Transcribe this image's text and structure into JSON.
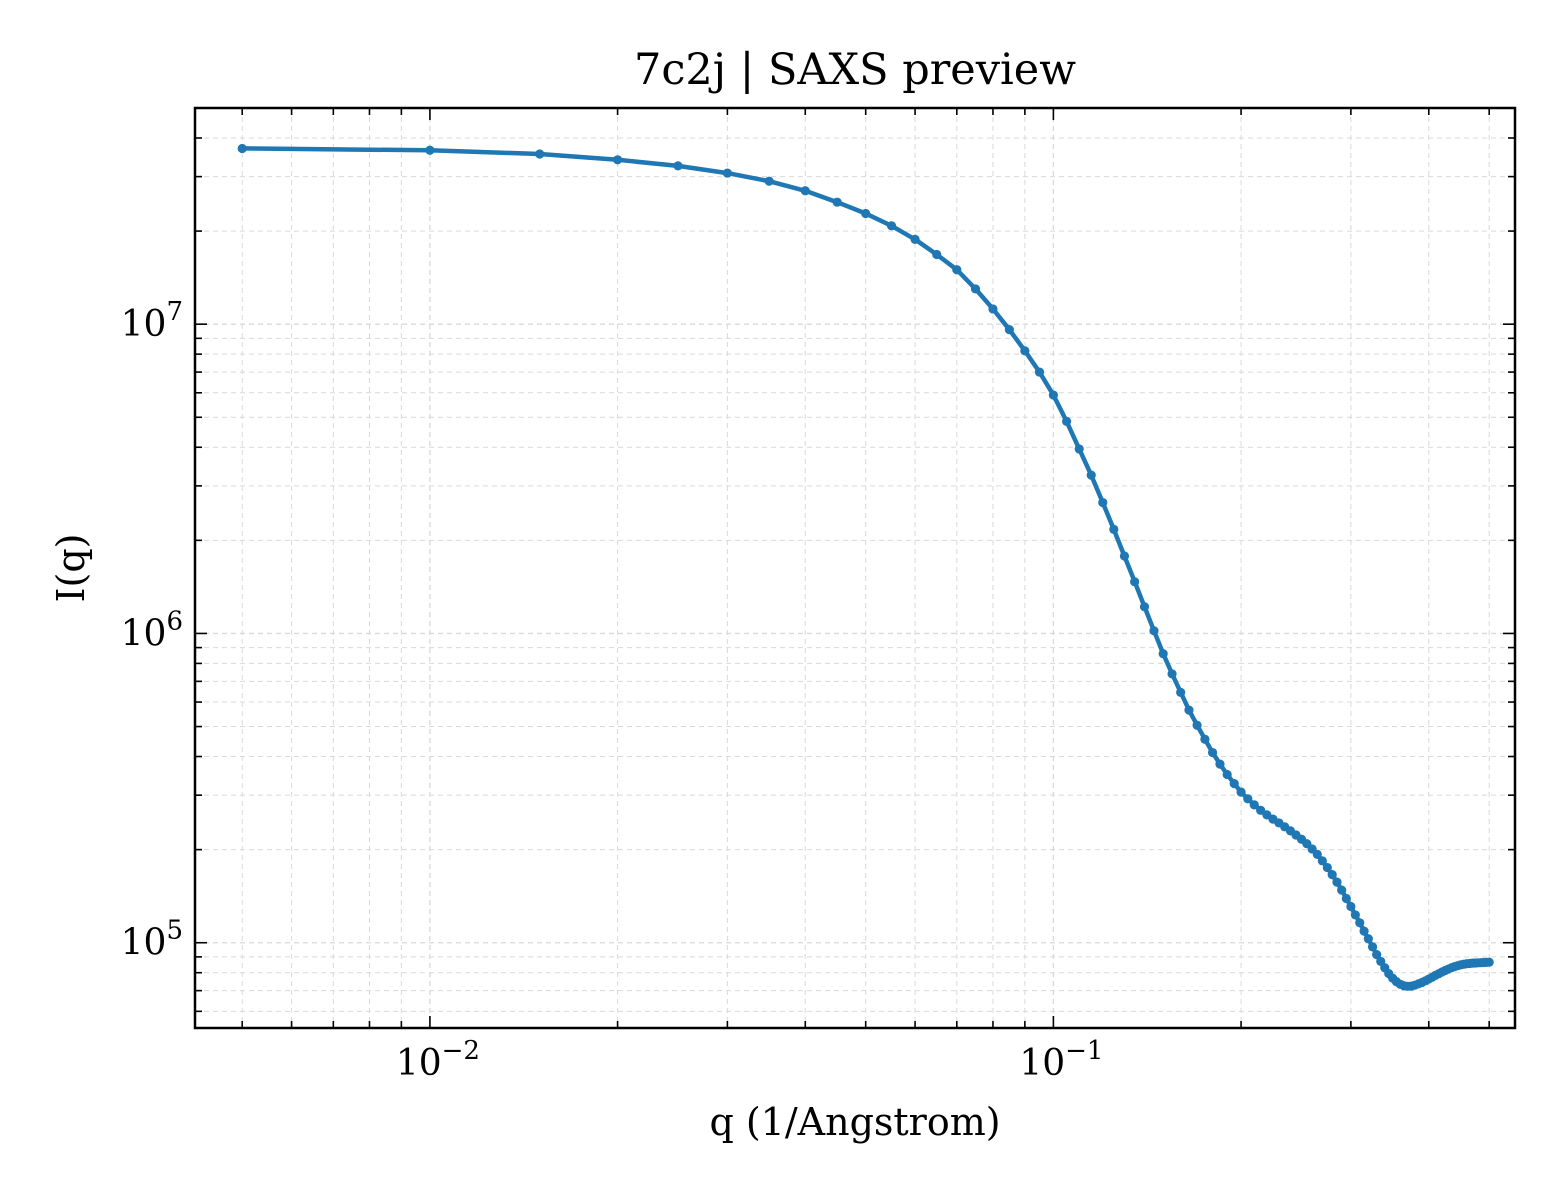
{
  "chart_data": {
    "type": "line",
    "title": "7c2j | SAXS preview",
    "xlabel": "q (1/Angstrom)",
    "ylabel": "I(q)",
    "xscale": "log",
    "yscale": "log",
    "xlim": [
      0.0042,
      0.55
    ],
    "ylim": [
      53000,
      50000000
    ],
    "grid": true,
    "legend": "none",
    "color": "#1f77b4",
    "marker": "dot",
    "xticks": [
      {
        "value": 0.01,
        "base": "10",
        "exp": "−2"
      },
      {
        "value": 0.1,
        "base": "10",
        "exp": "−1"
      }
    ],
    "yticks": [
      {
        "value": 100000,
        "base": "10",
        "exp": "5"
      },
      {
        "value": 1000000,
        "base": "10",
        "exp": "6"
      },
      {
        "value": 10000000,
        "base": "10",
        "exp": "7"
      }
    ],
    "series": [
      {
        "x": [
          0.005,
          0.01,
          0.015,
          0.02,
          0.025,
          0.03,
          0.035,
          0.04,
          0.045,
          0.05,
          0.055,
          0.06,
          0.065,
          0.07,
          0.075,
          0.08,
          0.085,
          0.09,
          0.095,
          0.1,
          0.105,
          0.11,
          0.115,
          0.12,
          0.125,
          0.13,
          0.135,
          0.14,
          0.145,
          0.15,
          0.155,
          0.16,
          0.165,
          0.17,
          0.175,
          0.18,
          0.185,
          0.19,
          0.195,
          0.2,
          0.205,
          0.21,
          0.215,
          0.22,
          0.225,
          0.23,
          0.235,
          0.24,
          0.245,
          0.25,
          0.255,
          0.26,
          0.265,
          0.27,
          0.275,
          0.28,
          0.285,
          0.29,
          0.295,
          0.3,
          0.305,
          0.31,
          0.315,
          0.32,
          0.325,
          0.33,
          0.335,
          0.34,
          0.345,
          0.35,
          0.355,
          0.36,
          0.365,
          0.37,
          0.375,
          0.38,
          0.385,
          0.39,
          0.395,
          0.4,
          0.405,
          0.41,
          0.415,
          0.42,
          0.425,
          0.43,
          0.435,
          0.44,
          0.445,
          0.45,
          0.455,
          0.46,
          0.465,
          0.47,
          0.475,
          0.48,
          0.485,
          0.49,
          0.495,
          0.5
        ],
        "y": [
          37000000,
          36500000,
          35500000,
          34000000,
          32500000,
          30800000,
          29000000,
          27000000,
          24800000,
          22800000,
          20800000,
          18800000,
          16800000,
          15000000,
          13000000,
          11200000,
          9600000,
          8200000,
          7000000,
          5900000,
          4850000,
          3950000,
          3250000,
          2650000,
          2170000,
          1780000,
          1470000,
          1220000,
          1020000,
          860000,
          740000,
          645000,
          565000,
          505000,
          455000,
          412000,
          378000,
          350000,
          327000,
          307000,
          292000,
          279000,
          268000,
          259000,
          251000,
          244000,
          237000,
          230000,
          223000,
          216000,
          209000,
          201000,
          193000,
          184000,
          175000,
          166000,
          157000,
          148000,
          139000,
          131000,
          123000,
          116000,
          109000,
          103000,
          97000,
          91500,
          87000,
          83000,
          79500,
          76800,
          74800,
          73400,
          72600,
          72300,
          72400,
          72900,
          73600,
          74400,
          75300,
          76300,
          77300,
          78400,
          79400,
          80400,
          81300,
          82200,
          83000,
          83700,
          84300,
          84800,
          85200,
          85500,
          85700,
          85900,
          86000,
          86100,
          86200,
          86300,
          86400,
          86500
        ]
      }
    ]
  }
}
